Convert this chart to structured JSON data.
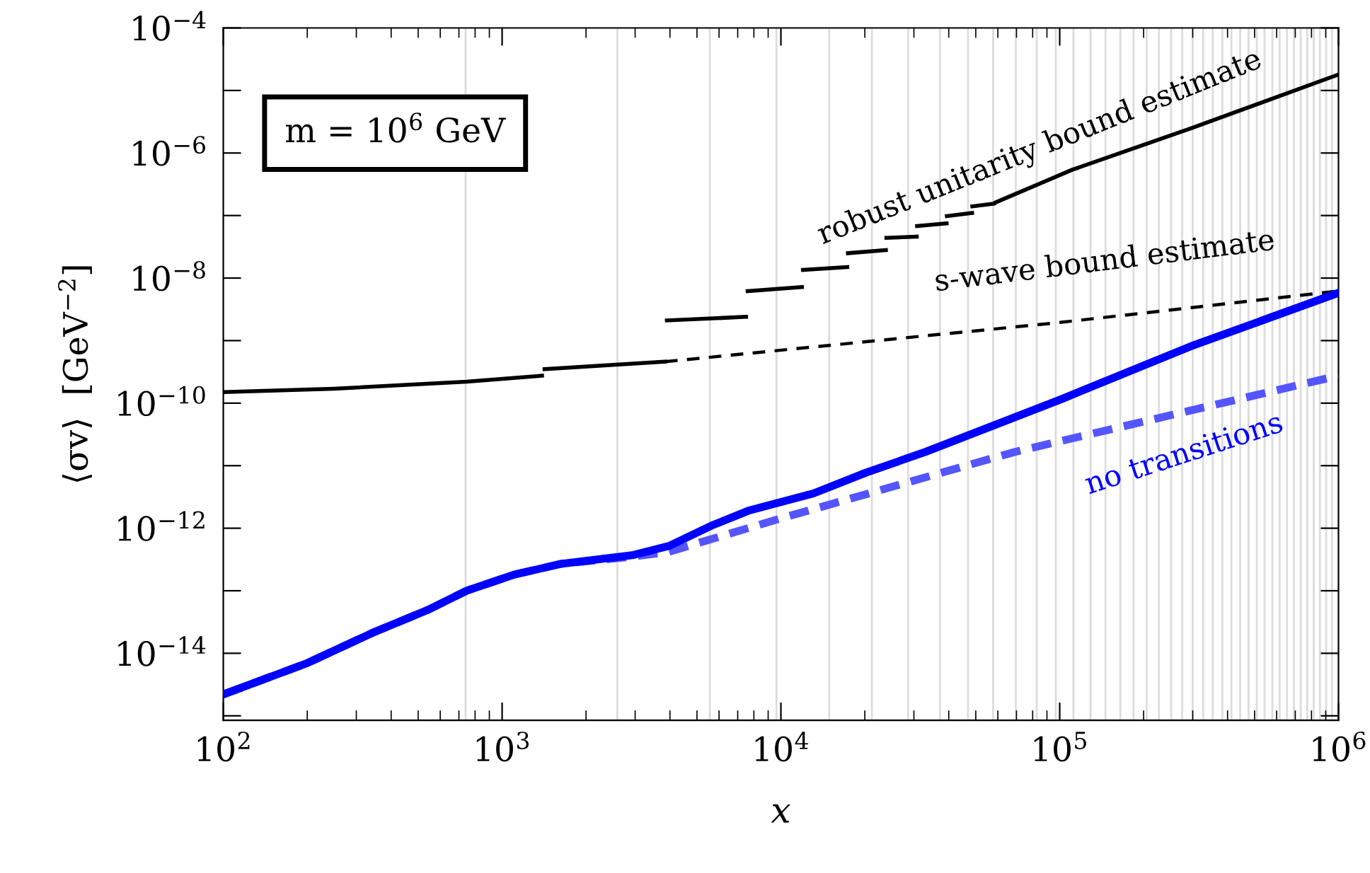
{
  "chart_data": {
    "type": "line",
    "xlabel": "x",
    "ylabel": "⟨σv⟩  [GeV$^{−2}$]",
    "log": "xy",
    "xlim": [
      100,
      1000000
    ],
    "ylim": [
      8.5e-16,
      0.0001
    ],
    "xticks": [
      {
        "value": 100,
        "label": "10$^{2}$"
      },
      {
        "value": 1000,
        "label": "10$^{3}$"
      },
      {
        "value": 10000,
        "label": "10$^{4}$"
      },
      {
        "value": 100000,
        "label": "10$^{5}$"
      },
      {
        "value": 1000000,
        "label": "10$^{6}$"
      }
    ],
    "yticks": [
      {
        "value": 1e-15,
        "label": null
      },
      {
        "value": 1e-14,
        "label": "10$^{−14}$"
      },
      {
        "value": 1e-13,
        "label": null
      },
      {
        "value": 1e-12,
        "label": "10$^{−12}$"
      },
      {
        "value": 1e-11,
        "label": null
      },
      {
        "value": 1e-10,
        "label": "10$^{−10}$"
      },
      {
        "value": 1e-09,
        "label": null
      },
      {
        "value": 1e-08,
        "label": "10$^{−8}$"
      },
      {
        "value": 1e-07,
        "label": null
      },
      {
        "value": 1e-06,
        "label": "10$^{−6}$"
      },
      {
        "value": 1e-05,
        "label": null
      },
      {
        "value": 0.0001,
        "label": "10$^{−4}$"
      }
    ],
    "series": [
      {
        "color": "#000000",
        "line_style": "solid",
        "x": [
          100,
          249,
          746,
          1390,
          1405,
          1420,
          3840
        ],
        "values": [
          1.5e-10,
          1.7e-10,
          2.2e-10,
          2.75e-10,
          null,
          3.5e-10,
          4.6e-10
        ]
      },
      {
        "color": "#000000",
        "line_style": "dashed",
        "x": [
          3840,
          100000,
          1000000
        ],
        "values": [
          4.6e-10,
          1.95e-09,
          6.2e-09
        ]
      },
      {
        "color": "#000000",
        "line_style": "solid",
        "x": [
          3900,
          7500,
          7550,
          7600,
          11900,
          11950,
          12000,
          17300,
          17350,
          17400,
          23800,
          23850,
          23900,
          30700,
          30750,
          30800,
          39300,
          39350,
          39400,
          48500,
          48550,
          48600,
          58400,
          58500,
          111000,
          297000,
          1000000
        ],
        "values": [
          2.1e-09,
          2.4e-09,
          null,
          6.2e-09,
          7.2e-09,
          null,
          1.35e-08,
          1.5e-08,
          null,
          2.5e-08,
          2.8e-08,
          null,
          4.4e-08,
          4.6e-08,
          null,
          6.8e-08,
          7.5e-08,
          null,
          9.8e-08,
          1.1e-07,
          null,
          1.4e-07,
          1.55e-07,
          1.6e-07,
          5.4e-07,
          2.5e-06,
          1.8e-05
        ]
      },
      {
        "color": "#5555ff",
        "line_style": "dashed",
        "x": [
          100,
          199,
          341,
          545,
          746,
          1100,
          1630,
          2930,
          3970,
          9800,
          69000,
          1000000
        ],
        "values": [
          2.2e-15,
          6.9e-15,
          2.1e-14,
          5e-14,
          1e-13,
          1.8e-13,
          2.7e-13,
          3.5e-13,
          4.2e-13,
          1.4e-12,
          1.66e-11,
          2.75e-10
        ]
      },
      {
        "color": "#0000ff",
        "line_style": "solid",
        "x": [
          100,
          199,
          341,
          545,
          746,
          1100,
          1630,
          2930,
          3970,
          5640,
          7640,
          13100,
          20300,
          33000,
          101000,
          295000,
          1000000
        ],
        "values": [
          2.2e-15,
          6.9e-15,
          2.1e-14,
          5e-14,
          1e-13,
          1.8e-13,
          2.7e-13,
          3.7e-13,
          5.2e-13,
          1.1e-12,
          1.9e-12,
          3.6e-12,
          7.8e-12,
          1.66e-11,
          1.15e-10,
          8.1e-10,
          5.8e-09
        ]
      }
    ],
    "annotations": [
      "m = 10$^{6}$ GeV",
      {
        "text": "robust unitarity bound estimate",
        "x": 85000,
        "y": 1.2e-06
      },
      {
        "text": "s-wave bound estimate",
        "x": 145000,
        "y": 1.8e-08
      },
      {
        "text": "no transitions",
        "x": 280000,
        "y": 1.5e-11
      }
    ],
    "ref_lines": [
      {
        "axis": "x",
        "value": 740,
        "color": "#dcdcdc"
      },
      {
        "axis": "x",
        "value": 2590,
        "color": "#dcdcdc"
      },
      {
        "axis": "x",
        "value": 5560,
        "color": "#dcdcdc"
      },
      {
        "axis": "x",
        "value": 9640,
        "color": "#dcdcdc"
      },
      {
        "axis": "x",
        "value": 14900,
        "color": "#dcdcdc"
      },
      {
        "axis": "x",
        "value": 21200,
        "color": "#dcdcdc"
      },
      {
        "axis": "x",
        "value": 28600,
        "color": "#dcdcdc"
      },
      {
        "axis": "x",
        "value": 37200,
        "color": "#dcdcdc"
      },
      {
        "axis": "x",
        "value": 46900,
        "color": "#dcdcdc"
      },
      {
        "axis": "x",
        "value": 57700,
        "color": "#dcdcdc"
      },
      {
        "axis": "x",
        "value": 69600,
        "color": "#dcdcdc"
      },
      {
        "axis": "x",
        "value": 82700,
        "color": "#dcdcdc"
      },
      {
        "axis": "x",
        "value": 96800,
        "color": "#dcdcdc"
      },
      {
        "axis": "x",
        "value": 112000,
        "color": "#dcdcdc"
      },
      {
        "axis": "x",
        "value": 129000,
        "color": "#dcdcdc"
      },
      {
        "axis": "x",
        "value": 146000,
        "color": "#dcdcdc"
      },
      {
        "axis": "x",
        "value": 165000,
        "color": "#dcdcdc"
      },
      {
        "axis": "x",
        "value": 184000,
        "color": "#dcdcdc"
      },
      {
        "axis": "x",
        "value": 205000,
        "color": "#dcdcdc"
      },
      {
        "axis": "x",
        "value": 227000,
        "color": "#dcdcdc"
      },
      {
        "axis": "x",
        "value": 251000,
        "color": "#dcdcdc"
      },
      {
        "axis": "x",
        "value": 275000,
        "color": "#dcdcdc"
      },
      {
        "axis": "x",
        "value": 300000,
        "color": "#dcdcdc"
      },
      {
        "axis": "x",
        "value": 327000,
        "color": "#dcdcdc"
      },
      {
        "axis": "x",
        "value": 354000,
        "color": "#dcdcdc"
      },
      {
        "axis": "x",
        "value": 383000,
        "color": "#dcdcdc"
      },
      {
        "axis": "x",
        "value": 413000,
        "color": "#dcdcdc"
      },
      {
        "axis": "x",
        "value": 444000,
        "color": "#dcdcdc"
      },
      {
        "axis": "x",
        "value": 476000,
        "color": "#dcdcdc"
      },
      {
        "axis": "x",
        "value": 509000,
        "color": "#dcdcdc"
      },
      {
        "axis": "x",
        "value": 543000,
        "color": "#dcdcdc"
      },
      {
        "axis": "x",
        "value": 579000,
        "color": "#dcdcdc"
      },
      {
        "axis": "x",
        "value": 615000,
        "color": "#dcdcdc"
      },
      {
        "axis": "x",
        "value": 653000,
        "color": "#dcdcdc"
      },
      {
        "axis": "x",
        "value": 692000,
        "color": "#dcdcdc"
      },
      {
        "axis": "x",
        "value": 732000,
        "color": "#dcdcdc"
      },
      {
        "axis": "x",
        "value": 773000,
        "color": "#dcdcdc"
      },
      {
        "axis": "x",
        "value": 815000,
        "color": "#dcdcdc"
      },
      {
        "axis": "x",
        "value": 858000,
        "color": "#dcdcdc"
      },
      {
        "axis": "x",
        "value": 903000,
        "color": "#dcdcdc"
      },
      {
        "axis": "x",
        "value": 948000,
        "color": "#dcdcdc"
      }
    ]
  }
}
